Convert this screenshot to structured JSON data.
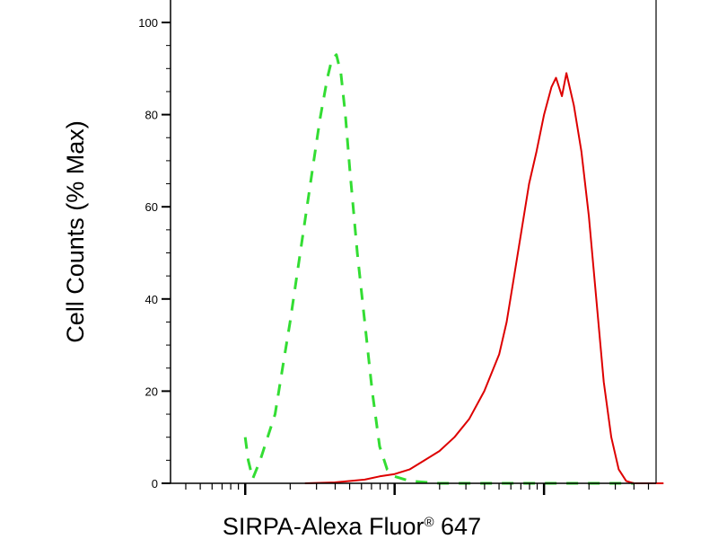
{
  "chart_data": {
    "type": "line",
    "title": "",
    "xlabel": "SIRPA-Alexa Fluor",
    "xlabel_mark": "®",
    "xlabel_suffix": " 647",
    "ylabel": "Cell Counts (% Max)",
    "xscale": "log",
    "ylim": [
      0,
      100
    ],
    "yticks": [
      0,
      20,
      40,
      60,
      80,
      100
    ],
    "ytick_labels": [
      "0",
      "20",
      "40",
      "60",
      "80",
      "100"
    ],
    "xticks_unlabeled": true,
    "grid": false,
    "legend": "none",
    "series": [
      {
        "color": "#33dd33",
        "style": "dashed",
        "points": [
          [
            0.0,
            10
          ],
          [
            0.02,
            5
          ],
          [
            0.05,
            1
          ],
          [
            0.1,
            5
          ],
          [
            0.15,
            10
          ],
          [
            0.2,
            15
          ],
          [
            0.25,
            25
          ],
          [
            0.3,
            35
          ],
          [
            0.35,
            46
          ],
          [
            0.4,
            57
          ],
          [
            0.45,
            68
          ],
          [
            0.5,
            79
          ],
          [
            0.55,
            88
          ],
          [
            0.58,
            92
          ],
          [
            0.61,
            93
          ],
          [
            0.64,
            89
          ],
          [
            0.67,
            80
          ],
          [
            0.7,
            68
          ],
          [
            0.75,
            50
          ],
          [
            0.8,
            35
          ],
          [
            0.85,
            20
          ],
          [
            0.9,
            8
          ],
          [
            0.95,
            3
          ],
          [
            1.0,
            1.5
          ],
          [
            1.1,
            0.5
          ],
          [
            1.3,
            0
          ],
          [
            1.6,
            0
          ],
          [
            2.6,
            0
          ]
        ]
      },
      {
        "color": "#dd0000",
        "style": "solid",
        "points": [
          [
            0.4,
            0
          ],
          [
            0.6,
            0.2
          ],
          [
            0.8,
            0.8
          ],
          [
            0.9,
            1.5
          ],
          [
            1.0,
            2
          ],
          [
            1.1,
            3
          ],
          [
            1.2,
            5
          ],
          [
            1.3,
            7
          ],
          [
            1.4,
            10
          ],
          [
            1.5,
            14
          ],
          [
            1.6,
            20
          ],
          [
            1.7,
            28
          ],
          [
            1.75,
            35
          ],
          [
            1.8,
            45
          ],
          [
            1.85,
            55
          ],
          [
            1.9,
            65
          ],
          [
            1.95,
            72
          ],
          [
            2.0,
            80
          ],
          [
            2.05,
            86
          ],
          [
            2.08,
            88
          ],
          [
            2.12,
            84
          ],
          [
            2.15,
            89
          ],
          [
            2.2,
            82
          ],
          [
            2.25,
            72
          ],
          [
            2.3,
            58
          ],
          [
            2.35,
            40
          ],
          [
            2.4,
            22
          ],
          [
            2.45,
            10
          ],
          [
            2.5,
            3
          ],
          [
            2.55,
            0.5
          ],
          [
            2.6,
            0
          ],
          [
            2.8,
            0
          ]
        ]
      }
    ]
  }
}
